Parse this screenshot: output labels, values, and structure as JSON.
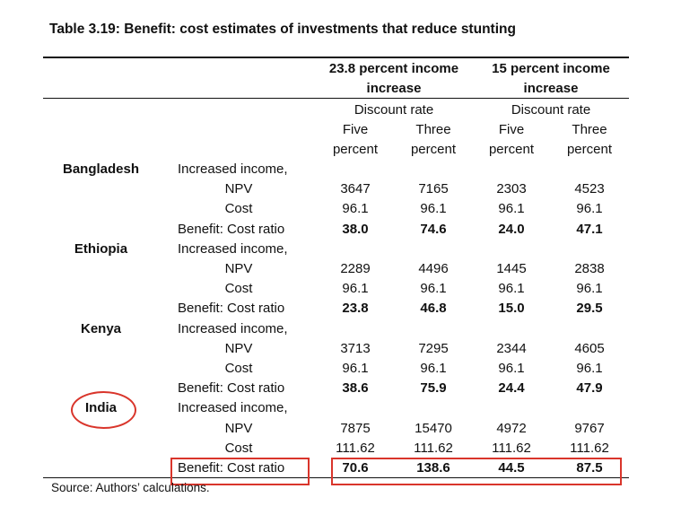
{
  "title": "Table 3.19: Benefit: cost estimates of investments that reduce stunting",
  "group_headers": [
    "23.8 percent income increase",
    "15 percent income increase"
  ],
  "group_header_lines": [
    [
      "23.8 percent income",
      "increase"
    ],
    [
      "15 percent income",
      "increase"
    ]
  ],
  "discount_label": "Discount rate",
  "subheaders": [
    [
      "Five",
      "percent"
    ],
    [
      "Three",
      "percent"
    ],
    [
      "Five",
      "percent"
    ],
    [
      "Three",
      "percent"
    ]
  ],
  "row_labels": {
    "increased_income": "Increased income,",
    "npv": "NPV",
    "cost": "Cost",
    "ratio": "Benefit: Cost ratio"
  },
  "countries": [
    {
      "name": "Bangladesh",
      "npv": [
        "3647",
        "7165",
        "2303",
        "4523"
      ],
      "cost": [
        "96.1",
        "96.1",
        "96.1",
        "96.1"
      ],
      "ratio": [
        "38.0",
        "74.6",
        "24.0",
        "47.1"
      ]
    },
    {
      "name": "Ethiopia",
      "npv": [
        "2289",
        "4496",
        "1445",
        "2838"
      ],
      "cost": [
        "96.1",
        "96.1",
        "96.1",
        "96.1"
      ],
      "ratio": [
        "23.8",
        "46.8",
        "15.0",
        "29.5"
      ]
    },
    {
      "name": "Kenya",
      "npv": [
        "3713",
        "7295",
        "2344",
        "4605"
      ],
      "cost": [
        "96.1",
        "96.1",
        "96.1",
        "96.1"
      ],
      "ratio": [
        "38.6",
        "75.9",
        "24.4",
        "47.9"
      ]
    },
    {
      "name": "India",
      "npv": [
        "7875",
        "15470",
        "4972",
        "9767"
      ],
      "cost": [
        "111.62",
        "111.62",
        "111.62",
        "111.62"
      ],
      "ratio": [
        "70.6",
        "138.6",
        "44.5",
        "87.5"
      ]
    }
  ],
  "source": "Source: Authors’ calculations.",
  "highlight_color": "#d9352b"
}
